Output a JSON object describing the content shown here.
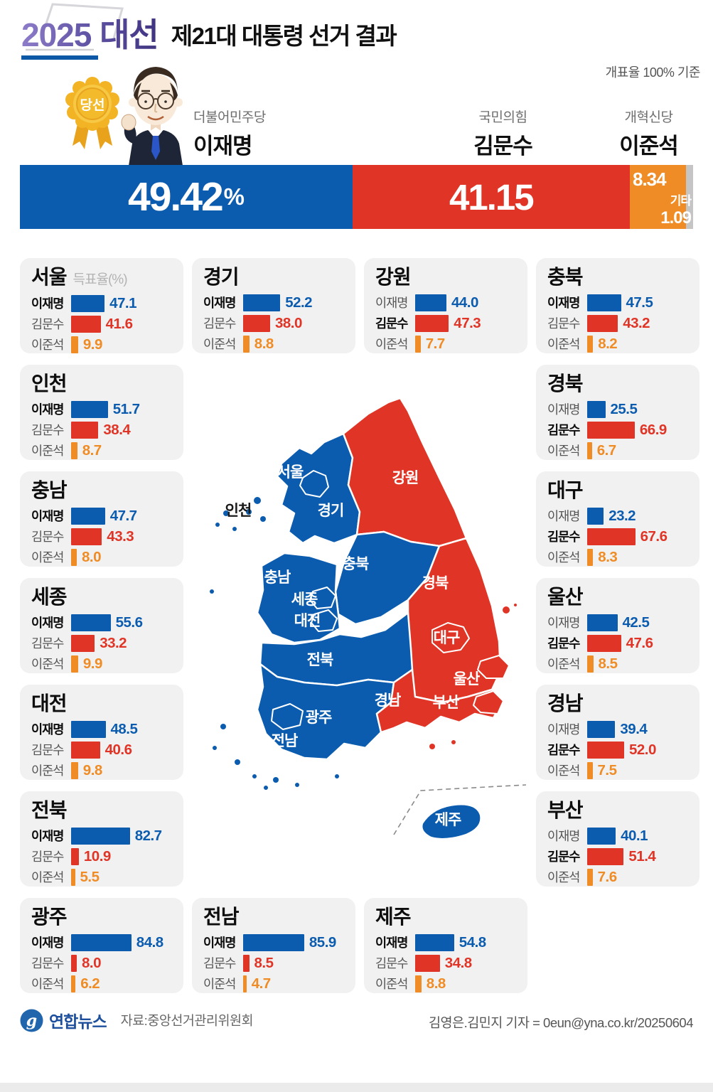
{
  "header": {
    "badge_title": "2025 대선",
    "title": "제21대 대통령 선거 결과",
    "note": "개표율 100% 기준"
  },
  "winner_badge_label": "당선",
  "candidates": [
    {
      "party": "더불어민주당",
      "name": "이재명",
      "color": "#0b5caf"
    },
    {
      "party": "국민의힘",
      "name": "김문수",
      "color": "#e03526"
    },
    {
      "party": "개혁신당",
      "name": "이준석",
      "color": "#ef8c25"
    }
  ],
  "national_bar": {
    "unit": "%",
    "others_label": "기타",
    "segments": [
      {
        "label": "이재명",
        "value": 49.42,
        "display": "49.42",
        "color": "#0b5caf"
      },
      {
        "label": "김문수",
        "value": 41.15,
        "display": "41.15",
        "color": "#e03526"
      },
      {
        "label": "이준석",
        "value": 8.34,
        "display": "8.34",
        "color": "#ef8c25"
      },
      {
        "label": "기타",
        "value": 1.09,
        "display": "1.09",
        "color": "#c5c5c5"
      }
    ]
  },
  "vote_rate_label": "득표율(%)",
  "regions": [
    {
      "name": "서울",
      "winner": 0,
      "values": [
        "47.1",
        "41.6",
        "9.9"
      ]
    },
    {
      "name": "경기",
      "winner": 0,
      "values": [
        "52.2",
        "38.0",
        "8.8"
      ]
    },
    {
      "name": "강원",
      "winner": 1,
      "values": [
        "44.0",
        "47.3",
        "7.7"
      ]
    },
    {
      "name": "충북",
      "winner": 0,
      "values": [
        "47.5",
        "43.2",
        "8.2"
      ]
    },
    {
      "name": "인천",
      "winner": 0,
      "values": [
        "51.7",
        "38.4",
        "8.7"
      ]
    },
    {
      "name": "경북",
      "winner": 1,
      "values": [
        "25.5",
        "66.9",
        "6.7"
      ]
    },
    {
      "name": "충남",
      "winner": 0,
      "values": [
        "47.7",
        "43.3",
        "8.0"
      ]
    },
    {
      "name": "대구",
      "winner": 1,
      "values": [
        "23.2",
        "67.6",
        "8.3"
      ]
    },
    {
      "name": "세종",
      "winner": 0,
      "values": [
        "55.6",
        "33.2",
        "9.9"
      ]
    },
    {
      "name": "울산",
      "winner": 1,
      "values": [
        "42.5",
        "47.6",
        "8.5"
      ]
    },
    {
      "name": "대전",
      "winner": 0,
      "values": [
        "48.5",
        "40.6",
        "9.8"
      ]
    },
    {
      "name": "경남",
      "winner": 1,
      "values": [
        "39.4",
        "52.0",
        "7.5"
      ]
    },
    {
      "name": "전북",
      "winner": 0,
      "values": [
        "82.7",
        "10.9",
        "5.5"
      ]
    },
    {
      "name": "부산",
      "winner": 1,
      "values": [
        "40.1",
        "51.4",
        "7.6"
      ]
    },
    {
      "name": "광주",
      "winner": 0,
      "values": [
        "84.8",
        "8.0",
        "6.2"
      ]
    },
    {
      "name": "전남",
      "winner": 0,
      "values": [
        "85.9",
        "8.5",
        "4.7"
      ]
    },
    {
      "name": "제주",
      "winner": 0,
      "values": [
        "54.8",
        "34.8",
        "8.8"
      ]
    }
  ],
  "map": {
    "colors": {
      "lee_jaemyung": "#0b5caf",
      "kim_moonsoo": "#e03526"
    },
    "labels": {
      "seoul": "서울",
      "incheon": "인천",
      "gyeonggi": "경기",
      "gangwon": "강원",
      "chungbuk": "충북",
      "chungnam": "충남",
      "sejong": "세종",
      "daejeon": "대전",
      "gyeongbuk": "경북",
      "daegu": "대구",
      "jeonbuk": "전북",
      "gwangju": "광주",
      "jeonnam": "전남",
      "gyeongnam": "경남",
      "busan": "부산",
      "ulsan": "울산",
      "jeju": "제주"
    }
  },
  "footer": {
    "brand": "연합뉴스",
    "source": "자료:중앙선거관리위원회",
    "byline": "김영은.김민지 기자 = 0eun@yna.co.kr/20250604"
  },
  "chart_data": [
    {
      "type": "bar",
      "title": "제21대 대통령 선거 결과",
      "subtitle": "개표율 100% 기준",
      "categories": [
        "이재명(더불어민주당)",
        "김문수(국민의힘)",
        "이준석(개혁신당)",
        "기타"
      ],
      "values": [
        49.42,
        41.15,
        8.34,
        1.09
      ],
      "unit": "%",
      "xlabel": "",
      "ylabel": "득표율(%)",
      "ylim": [
        0,
        100
      ],
      "legend_position": "none"
    },
    {
      "type": "bar",
      "title": "지역별 득표율(%)",
      "categories": [
        "서울",
        "경기",
        "강원",
        "충북",
        "인천",
        "경북",
        "충남",
        "대구",
        "세종",
        "울산",
        "대전",
        "경남",
        "전북",
        "부산",
        "광주",
        "전남",
        "제주"
      ],
      "series": [
        {
          "name": "이재명",
          "values": [
            47.1,
            52.2,
            44.0,
            47.5,
            51.7,
            25.5,
            47.7,
            23.2,
            55.6,
            42.5,
            48.5,
            39.4,
            82.7,
            40.1,
            84.8,
            85.9,
            54.8
          ]
        },
        {
          "name": "김문수",
          "values": [
            41.6,
            38.0,
            47.3,
            43.2,
            38.4,
            66.9,
            43.3,
            67.6,
            33.2,
            47.6,
            40.6,
            52.0,
            10.9,
            51.4,
            8.0,
            8.5,
            34.8
          ]
        },
        {
          "name": "이준석",
          "values": [
            9.9,
            8.8,
            7.7,
            8.2,
            8.7,
            6.7,
            8.0,
            8.3,
            9.9,
            8.5,
            9.8,
            7.5,
            5.5,
            7.6,
            6.2,
            4.7,
            8.8
          ]
        }
      ],
      "region_winners": [
        "이재명",
        "이재명",
        "김문수",
        "이재명",
        "이재명",
        "김문수",
        "이재명",
        "김문수",
        "이재명",
        "김문수",
        "이재명",
        "김문수",
        "이재명",
        "김문수",
        "이재명",
        "이재명",
        "이재명"
      ],
      "unit": "%",
      "ylim": [
        0,
        100
      ]
    }
  ]
}
